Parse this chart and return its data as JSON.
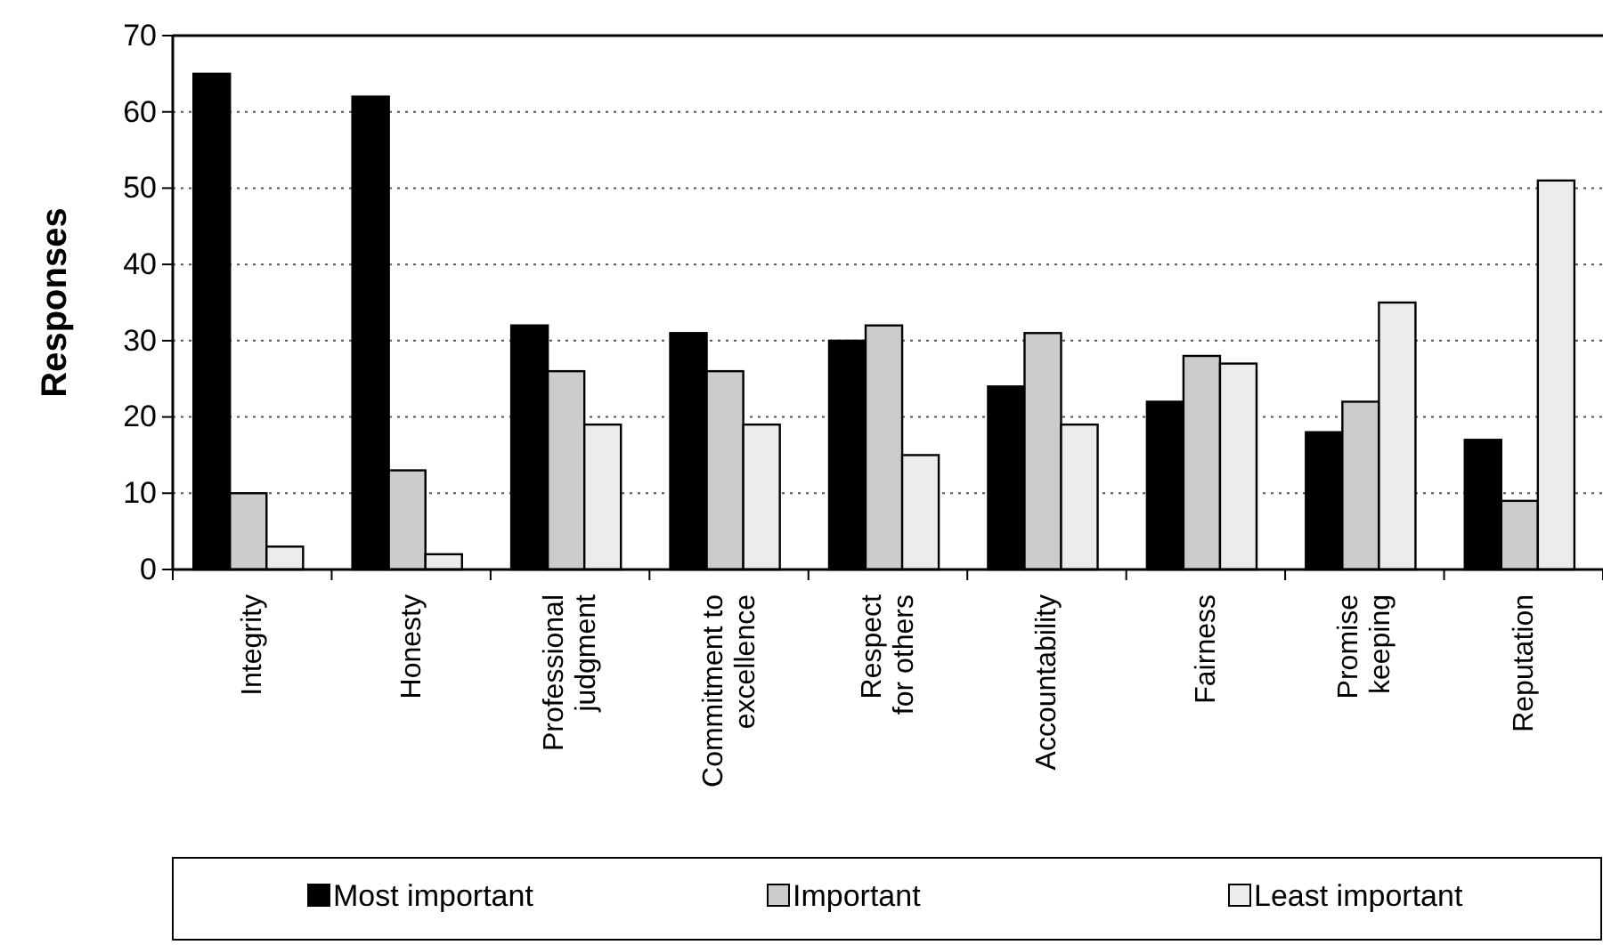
{
  "chart_data": {
    "type": "bar",
    "ylabel": "Responses",
    "categories": [
      "Integrity",
      "Honesty",
      "Professional judgment",
      "Commitment to excellence",
      "Respect for others",
      "Accountability",
      "Fairness",
      "Promise keeping",
      "Reputation"
    ],
    "series": [
      {
        "name": "Most important",
        "color": "#000000",
        "values": [
          65,
          62,
          32,
          31,
          30,
          24,
          22,
          18,
          17
        ]
      },
      {
        "name": "Important",
        "color": "#cccccc",
        "values": [
          10,
          13,
          26,
          26,
          32,
          31,
          28,
          22,
          9
        ]
      },
      {
        "name": "Least important",
        "color": "#ececec",
        "values": [
          3,
          2,
          19,
          19,
          15,
          19,
          27,
          35,
          51
        ]
      }
    ],
    "ylim": [
      0,
      70
    ],
    "yticks": [
      0,
      10,
      20,
      30,
      40,
      50,
      60,
      70
    ],
    "grid": "y",
    "legend": "bottom"
  }
}
